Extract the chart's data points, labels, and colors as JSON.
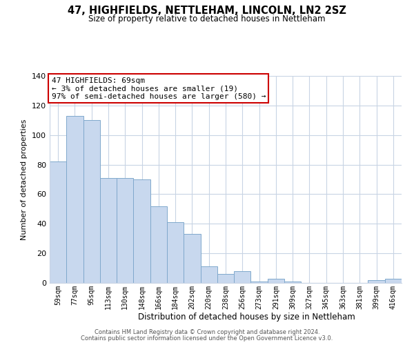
{
  "title": "47, HIGHFIELDS, NETTLEHAM, LINCOLN, LN2 2SZ",
  "subtitle": "Size of property relative to detached houses in Nettleham",
  "xlabel": "Distribution of detached houses by size in Nettleham",
  "ylabel": "Number of detached properties",
  "categories": [
    "59sqm",
    "77sqm",
    "95sqm",
    "113sqm",
    "130sqm",
    "148sqm",
    "166sqm",
    "184sqm",
    "202sqm",
    "220sqm",
    "238sqm",
    "256sqm",
    "273sqm",
    "291sqm",
    "309sqm",
    "327sqm",
    "345sqm",
    "363sqm",
    "381sqm",
    "399sqm",
    "416sqm"
  ],
  "values": [
    82,
    113,
    110,
    71,
    71,
    70,
    52,
    41,
    33,
    11,
    6,
    8,
    1,
    3,
    1,
    0,
    0,
    0,
    0,
    2,
    3
  ],
  "bar_fill_color": "#c8d8ee",
  "bar_edge_color": "#7fa8cc",
  "ylim": [
    0,
    140
  ],
  "yticks": [
    0,
    20,
    40,
    60,
    80,
    100,
    120,
    140
  ],
  "annotation_box_text": "47 HIGHFIELDS: 69sqm\n← 3% of detached houses are smaller (19)\n97% of semi-detached houses are larger (580) →",
  "annotation_box_edge_color": "#cc0000",
  "annotation_box_face_color": "#ffffff",
  "footer_line1": "Contains HM Land Registry data © Crown copyright and database right 2024.",
  "footer_line2": "Contains public sector information licensed under the Open Government Licence v3.0.",
  "background_color": "#ffffff",
  "grid_color": "#c8d4e4"
}
